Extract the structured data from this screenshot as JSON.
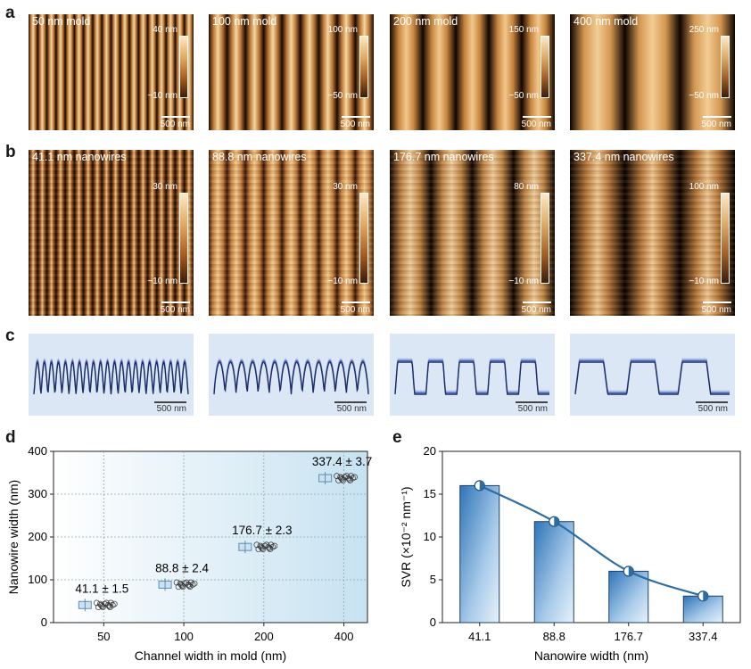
{
  "panels": {
    "a": {
      "label": "a",
      "tiles": [
        {
          "title": "50 nm mold",
          "cbar_top": "40 nm",
          "cbar_bottom": "−10 nm",
          "scale": "500 nm"
        },
        {
          "title": "100 nm mold",
          "cbar_top": "100 nm",
          "cbar_bottom": "−50 nm",
          "scale": "500 nm"
        },
        {
          "title": "200 nm mold",
          "cbar_top": "150 nm",
          "cbar_bottom": "−50 nm",
          "scale": "500 nm"
        },
        {
          "title": "400 nm mold",
          "cbar_top": "250 nm",
          "cbar_bottom": "−50 nm",
          "scale": "500 nm"
        }
      ]
    },
    "b": {
      "label": "b",
      "tiles": [
        {
          "title": "41.1 nm nanowires",
          "cbar_top": "30 nm",
          "cbar_bottom": "−10 nm",
          "scale": "500 nm"
        },
        {
          "title": "88.8 nm nanowires",
          "cbar_top": "30 nm",
          "cbar_bottom": "−10 nm",
          "scale": "500 nm"
        },
        {
          "title": "176.7 nm nanowires",
          "cbar_top": "80 nm",
          "cbar_bottom": "−10 nm",
          "scale": "500 nm"
        },
        {
          "title": "337.4 nm nanowires",
          "cbar_top": "100 nm",
          "cbar_bottom": "−10 nm",
          "scale": "500 nm"
        }
      ]
    },
    "c": {
      "label": "c",
      "profiles": [
        {
          "scale": "500 nm"
        },
        {
          "scale": "500 nm"
        },
        {
          "scale": "500 nm"
        },
        {
          "scale": "500 nm"
        }
      ]
    },
    "d": {
      "label": "d"
    },
    "e": {
      "label": "e"
    }
  },
  "chart_data": [
    {
      "type": "scatter",
      "xlabel": "Channel width in mold (nm)",
      "ylabel": "Nanowire width (nm)",
      "categories": [
        "50",
        "100",
        "200",
        "400"
      ],
      "ylim": [
        0,
        400
      ],
      "yticks": [
        0,
        100,
        200,
        300,
        400
      ],
      "values": [
        41.1,
        88.8,
        176.7,
        337.4
      ],
      "sd": [
        1.5,
        2.4,
        2.3,
        3.7
      ],
      "annotations": [
        "41.1 ± 1.5",
        "88.8 ± 2.4",
        "176.7 ± 2.3",
        "337.4 ± 3.7"
      ],
      "grid": true
    },
    {
      "type": "bar",
      "xlabel": "Nanowire width (nm)",
      "ylabel": "SVR (×10⁻² nm⁻¹)",
      "categories": [
        "41.1",
        "88.8",
        "176.7",
        "337.4"
      ],
      "values": [
        16.0,
        11.8,
        6.0,
        3.1
      ],
      "ylim": [
        0,
        20
      ],
      "yticks": [
        0,
        5,
        10,
        15,
        20
      ],
      "line_overlay": true
    }
  ]
}
